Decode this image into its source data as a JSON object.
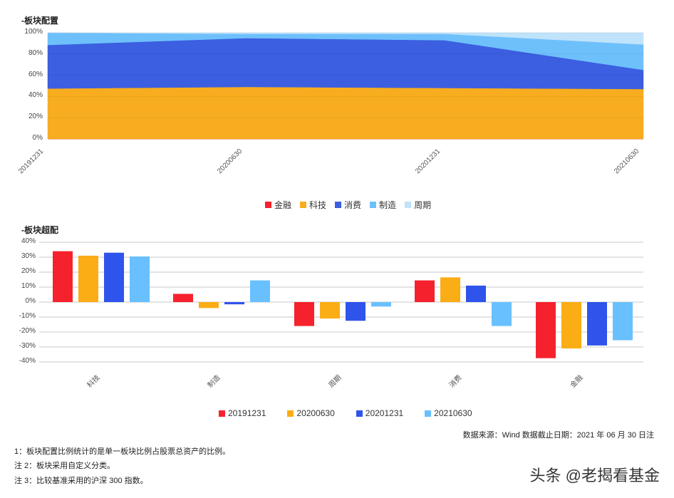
{
  "chart_data": [
    {
      "type": "area",
      "title": "-板块配置",
      "stacked": true,
      "categories": [
        "20191231",
        "20200630",
        "20201231",
        "20210630"
      ],
      "series": [
        {
          "name": "金融",
          "color": "#f5222d",
          "values": [
            0,
            0,
            0,
            0
          ]
        },
        {
          "name": "科技",
          "color": "#f7ad1f",
          "values": [
            47.5,
            49,
            48,
            47
          ]
        },
        {
          "name": "消费",
          "color": "#3b5fe0",
          "values": [
            41,
            46,
            45,
            18
          ]
        },
        {
          "name": "制造",
          "color": "#6ec0fb",
          "values": [
            11.5,
            4,
            6,
            24
          ]
        },
        {
          "name": "周期",
          "color": "#bfe3fb",
          "values": [
            0,
            1,
            1,
            11
          ]
        }
      ],
      "yticks": [
        "0%",
        "20%",
        "40%",
        "60%",
        "80%",
        "100%"
      ],
      "ylim": [
        0,
        100
      ],
      "legend_position": "bottom"
    },
    {
      "type": "bar",
      "title": "-板块超配",
      "categories": [
        "科技",
        "制造",
        "周期",
        "消费",
        "金融"
      ],
      "series": [
        {
          "name": "20191231",
          "color": "#f5222d",
          "values": [
            34,
            5.5,
            -16,
            14.5,
            -37.5
          ]
        },
        {
          "name": "20200630",
          "color": "#faad14",
          "values": [
            31,
            -4,
            -11,
            16.5,
            -31
          ]
        },
        {
          "name": "20201231",
          "color": "#2f54eb",
          "values": [
            33,
            -1.5,
            -12.5,
            11,
            -29
          ]
        },
        {
          "name": "20210630",
          "color": "#69c0ff",
          "values": [
            30.5,
            14.5,
            -3,
            -16,
            -25.5
          ]
        }
      ],
      "yticks": [
        "40%",
        "30%",
        "20%",
        "10%",
        "0%",
        "-10%",
        "-20%",
        "-30%",
        "-40%"
      ],
      "ylim": [
        -40,
        40
      ],
      "grid": true,
      "legend_position": "bottom"
    }
  ],
  "area": {
    "title": "-板块配置",
    "yticks": [
      "100%",
      "80%",
      "60%",
      "40%",
      "20%",
      "0%"
    ],
    "xticks": [
      "20191231",
      "20200630",
      "20201231",
      "20210630"
    ],
    "legend": [
      {
        "label": "金融",
        "color": "#f5222d"
      },
      {
        "label": "科技",
        "color": "#f7ad1f"
      },
      {
        "label": "消费",
        "color": "#3b5fe0"
      },
      {
        "label": "制造",
        "color": "#6ec0fb"
      },
      {
        "label": "周期",
        "color": "#bfe3fb"
      }
    ]
  },
  "bar": {
    "title": "-板块超配",
    "yticks": [
      "40%",
      "30%",
      "20%",
      "10%",
      "0%",
      "-10%",
      "-20%",
      "-30%",
      "-40%"
    ],
    "xticks": [
      "科技",
      "制造",
      "周期",
      "消费",
      "金融"
    ],
    "legend": [
      {
        "label": "20191231",
        "color": "#f5222d"
      },
      {
        "label": "20200630",
        "color": "#faad14"
      },
      {
        "label": "20201231",
        "color": "#2f54eb"
      },
      {
        "label": "20210630",
        "color": "#69c0ff"
      }
    ]
  },
  "footer": {
    "source": "数据来源：Wind    数据截止日期：2021 年 06 月 30 日注",
    "note1": "1：板块配置比例统计的是单一板块比例占股票总资产的比例。",
    "note2": "注 2：板块采用自定义分类。",
    "note3": "注 3：比较基准采用的沪深 300 指数。",
    "watermark": "头条 @老揭看基金"
  }
}
